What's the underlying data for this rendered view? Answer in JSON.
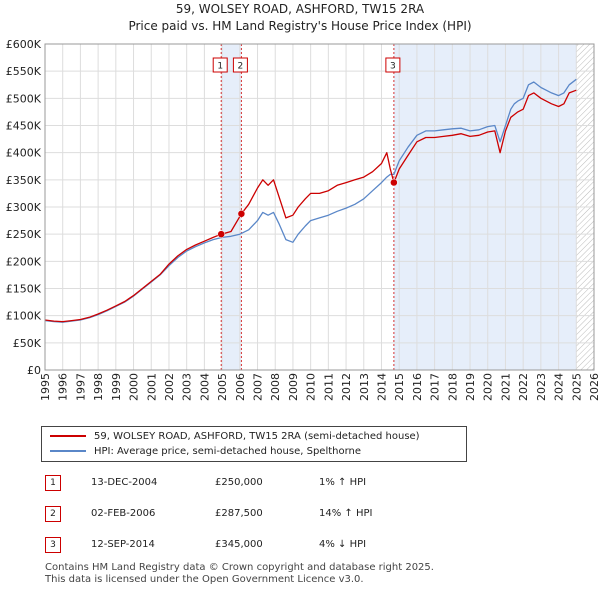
{
  "header": {
    "title_line1": "59, WOLSEY ROAD, ASHFORD, TW15 2RA",
    "title_line2": "Price paid vs. HM Land Registry's House Price Index (HPI)"
  },
  "colors": {
    "property_line": "#cc0000",
    "hpi_line": "#5a87c8",
    "shade": "#e6eefa",
    "marker_line": "#cc0000",
    "grid": "#dddddd"
  },
  "chart_data": {
    "type": "line",
    "title": "Price paid vs. HM Land Registry's House Price Index (HPI)",
    "xlim": [
      1995,
      2026
    ],
    "ylim": [
      0,
      600000
    ],
    "x_ticks": [
      1995,
      1996,
      1997,
      1998,
      1999,
      2000,
      2001,
      2002,
      2003,
      2004,
      2005,
      2006,
      2007,
      2008,
      2009,
      2010,
      2011,
      2012,
      2013,
      2014,
      2015,
      2016,
      2017,
      2018,
      2019,
      2020,
      2021,
      2022,
      2023,
      2024,
      2025,
      2026
    ],
    "y_ticks": [
      0,
      50000,
      100000,
      150000,
      200000,
      250000,
      300000,
      350000,
      400000,
      450000,
      500000,
      550000,
      600000
    ],
    "y_tick_labels": [
      "£0",
      "£50K",
      "£100K",
      "£150K",
      "£200K",
      "£250K",
      "£300K",
      "£350K",
      "£400K",
      "£450K",
      "£500K",
      "£550K",
      "£600K"
    ],
    "shaded_spans": [
      [
        2004.95,
        2006.09
      ],
      [
        2014.7,
        2025.0
      ]
    ],
    "hatched_span": [
      2025.0,
      2026.0
    ],
    "sale_markers": [
      {
        "label": "1",
        "x": 2004.95,
        "y": 250000
      },
      {
        "label": "2",
        "x": 2006.09,
        "y": 287500
      },
      {
        "label": "3",
        "x": 2014.7,
        "y": 345000
      }
    ],
    "series": [
      {
        "name": "59, WOLSEY ROAD, ASHFORD, TW15 2RA (semi-detached house)",
        "color": "#cc0000",
        "x": [
          1995.0,
          1995.5,
          1996.0,
          1996.5,
          1997.0,
          1997.5,
          1998.0,
          1998.5,
          1999.0,
          1999.5,
          2000.0,
          2000.5,
          2001.0,
          2001.5,
          2002.0,
          2002.5,
          2003.0,
          2003.5,
          2004.0,
          2004.5,
          2004.95,
          2005.5,
          2006.09,
          2006.5,
          2007.0,
          2007.3,
          2007.6,
          2007.9,
          2008.2,
          2008.6,
          2009.0,
          2009.3,
          2009.7,
          2010.0,
          2010.5,
          2011.0,
          2011.5,
          2012.0,
          2012.5,
          2013.0,
          2013.5,
          2014.0,
          2014.3,
          2014.5,
          2014.7,
          2015.0,
          2015.5,
          2016.0,
          2016.5,
          2017.0,
          2017.5,
          2018.0,
          2018.5,
          2019.0,
          2019.5,
          2020.0,
          2020.4,
          2020.7,
          2021.0,
          2021.3,
          2021.5,
          2021.7,
          2022.0,
          2022.3,
          2022.6,
          2023.0,
          2023.3,
          2023.6,
          2024.0,
          2024.3,
          2024.6,
          2025.0
        ],
        "values": [
          92000,
          90000,
          89000,
          91000,
          93000,
          97000,
          103000,
          110000,
          118000,
          126000,
          137000,
          150000,
          163000,
          176000,
          195000,
          210000,
          222000,
          230000,
          237000,
          244000,
          250000,
          255000,
          287500,
          305000,
          335000,
          350000,
          340000,
          350000,
          320000,
          280000,
          285000,
          300000,
          315000,
          325000,
          325000,
          330000,
          340000,
          345000,
          350000,
          355000,
          365000,
          380000,
          400000,
          370000,
          345000,
          370000,
          395000,
          420000,
          428000,
          428000,
          430000,
          432000,
          435000,
          430000,
          432000,
          438000,
          440000,
          400000,
          440000,
          465000,
          470000,
          475000,
          480000,
          505000,
          510000,
          500000,
          495000,
          490000,
          485000,
          490000,
          510000,
          515000
        ]
      },
      {
        "name": "HPI: Average price, semi-detached house, Spelthorne",
        "color": "#5a87c8",
        "x": [
          1995.0,
          1995.5,
          1996.0,
          1996.5,
          1997.0,
          1997.5,
          1998.0,
          1998.5,
          1999.0,
          1999.5,
          2000.0,
          2000.5,
          2001.0,
          2001.5,
          2002.0,
          2002.5,
          2003.0,
          2003.5,
          2004.0,
          2004.5,
          2005.0,
          2005.5,
          2006.0,
          2006.5,
          2007.0,
          2007.3,
          2007.6,
          2007.9,
          2008.2,
          2008.6,
          2009.0,
          2009.3,
          2009.7,
          2010.0,
          2010.5,
          2011.0,
          2011.5,
          2012.0,
          2012.5,
          2013.0,
          2013.5,
          2014.0,
          2014.3,
          2014.5,
          2014.7,
          2015.0,
          2015.5,
          2016.0,
          2016.5,
          2017.0,
          2017.5,
          2018.0,
          2018.5,
          2019.0,
          2019.5,
          2020.0,
          2020.4,
          2020.7,
          2021.0,
          2021.3,
          2021.5,
          2021.7,
          2022.0,
          2022.3,
          2022.6,
          2023.0,
          2023.3,
          2023.6,
          2024.0,
          2024.3,
          2024.6,
          2025.0
        ],
        "values": [
          91000,
          89000,
          88000,
          90000,
          92000,
          96000,
          102000,
          109000,
          117000,
          125000,
          136000,
          149000,
          162000,
          175000,
          192000,
          207000,
          219000,
          227000,
          234000,
          240000,
          244000,
          246000,
          250000,
          258000,
          275000,
          290000,
          285000,
          290000,
          270000,
          240000,
          235000,
          250000,
          265000,
          275000,
          280000,
          285000,
          292000,
          298000,
          305000,
          315000,
          330000,
          345000,
          355000,
          360000,
          360000,
          385000,
          410000,
          432000,
          440000,
          440000,
          442000,
          444000,
          445000,
          440000,
          442000,
          448000,
          450000,
          420000,
          450000,
          480000,
          490000,
          495000,
          500000,
          525000,
          530000,
          520000,
          515000,
          510000,
          505000,
          510000,
          525000,
          535000
        ]
      }
    ]
  },
  "legend": {
    "items": [
      {
        "label": "59, WOLSEY ROAD, ASHFORD, TW15 2RA (semi-detached house)"
      },
      {
        "label": "HPI: Average price, semi-detached house, Spelthorne"
      }
    ]
  },
  "transactions": [
    {
      "num": "1",
      "date": "13-DEC-2004",
      "price": "£250,000",
      "hpi": "1% ↑ HPI"
    },
    {
      "num": "2",
      "date": "02-FEB-2006",
      "price": "£287,500",
      "hpi": "14% ↑ HPI"
    },
    {
      "num": "3",
      "date": "12-SEP-2014",
      "price": "£345,000",
      "hpi": "4% ↓ HPI"
    }
  ],
  "footer": {
    "line1": "Contains HM Land Registry data © Crown copyright and database right 2025.",
    "line2": "This data is licensed under the Open Government Licence v3.0."
  }
}
